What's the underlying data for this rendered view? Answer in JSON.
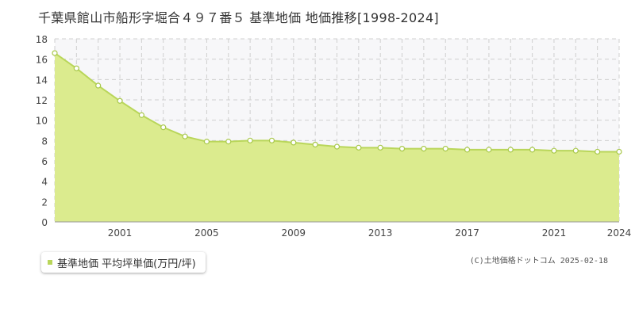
{
  "title": "千葉県館山市船形字堀合４９７番５ 基準地価 地価推移[1998-2024]",
  "copyright": "(C)土地価格ドットコム 2025-02-18",
  "colors": {
    "fill": "#dbeb8e",
    "line": "#b9d65a",
    "marker_stroke": "#a8c84a",
    "plot_bg": "#f7f7f9",
    "grid": "#cfcfcf",
    "legend_swatch": "#b9d65a"
  },
  "chart_data": {
    "type": "area",
    "title": "千葉県館山市船形字堀合４９７番５ 基準地価 地価推移[1998-2024]",
    "xlabel": "",
    "ylabel": "",
    "xlim": [
      1998,
      2024
    ],
    "ylim": [
      0,
      18
    ],
    "y_ticks": [
      0,
      2,
      4,
      6,
      8,
      10,
      12,
      14,
      16,
      18
    ],
    "x_ticks": [
      2001,
      2005,
      2009,
      2013,
      2017,
      2021,
      2024
    ],
    "grid": true,
    "legend_position": "bottom-left",
    "series": [
      {
        "name": "基準地価 平均坪単価(万円/坪)",
        "x": [
          1998,
          1999,
          2000,
          2001,
          2002,
          2003,
          2004,
          2005,
          2006,
          2007,
          2008,
          2009,
          2010,
          2011,
          2012,
          2013,
          2014,
          2015,
          2016,
          2017,
          2018,
          2019,
          2020,
          2021,
          2022,
          2023,
          2024
        ],
        "values": [
          16.6,
          15.1,
          13.4,
          11.9,
          10.5,
          9.3,
          8.4,
          7.9,
          7.9,
          8.0,
          8.0,
          7.8,
          7.6,
          7.4,
          7.3,
          7.3,
          7.2,
          7.2,
          7.2,
          7.1,
          7.1,
          7.1,
          7.1,
          7.0,
          7.0,
          6.9,
          6.9
        ]
      }
    ]
  },
  "legend": {
    "label": "基準地価 平均坪単価(万円/坪)"
  }
}
